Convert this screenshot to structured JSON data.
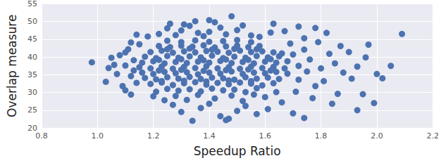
{
  "chart_data": {
    "type": "scatter",
    "xlabel": "Speedup Ratio",
    "ylabel": "Overlap measure",
    "color": "#4c72b0",
    "marker": "circle",
    "grid": true,
    "xlim": [
      0.8,
      2.2
    ],
    "ylim": [
      20,
      55
    ],
    "xticks": [
      0.8,
      {
        "value": 1,
        "label": "1.0"
      },
      1.2,
      1.4,
      1.6,
      1.8,
      {
        "value": 2,
        "label": "2.0"
      },
      2.2
    ],
    "yticks": [
      20,
      25,
      30,
      35,
      40,
      45,
      50,
      55
    ],
    "x": [
      1.21,
      1.25,
      1.29,
      1.33,
      1.37,
      1.41,
      1.45,
      1.49,
      1.53,
      1.57,
      1.19,
      1.23,
      1.27,
      1.31,
      1.35,
      1.39,
      1.43,
      1.47,
      1.51,
      1.55,
      1.59,
      1.63,
      1.17,
      1.21,
      1.25,
      1.29,
      1.33,
      1.37,
      1.41,
      1.45,
      1.49,
      1.53,
      1.57,
      1.61,
      1.65,
      1.16,
      1.2,
      1.24,
      1.28,
      1.32,
      1.36,
      1.4,
      1.44,
      1.48,
      1.52,
      1.56,
      1.6,
      1.64,
      1.68,
      1.15,
      1.19,
      1.23,
      1.27,
      1.31,
      1.35,
      1.39,
      1.43,
      1.47,
      1.51,
      1.55,
      1.59,
      1.63,
      1.67,
      1.16,
      1.2,
      1.24,
      1.28,
      1.32,
      1.36,
      1.4,
      1.44,
      1.48,
      1.52,
      1.56,
      1.6,
      1.64,
      1.68,
      1.17,
      1.21,
      1.25,
      1.29,
      1.33,
      1.37,
      1.41,
      1.45,
      1.49,
      1.53,
      1.57,
      1.61,
      1.65,
      1.19,
      1.23,
      1.27,
      1.31,
      1.35,
      1.39,
      1.43,
      1.47,
      1.51,
      1.55,
      1.59,
      1.63,
      1.22,
      1.26,
      1.3,
      1.34,
      1.38,
      1.42,
      1.46,
      1.5,
      1.54,
      1.58,
      1.25,
      1.3,
      1.35,
      1.4,
      1.45,
      1.5,
      1.55,
      1.23,
      1.31,
      1.39,
      1.47,
      1.55,
      1.22,
      1.3,
      1.38,
      1.46,
      1.54,
      1.62,
      1.22,
      1.3,
      1.38,
      1.46,
      1.54,
      1.62,
      1.25,
      1.33,
      1.41,
      1.49,
      1.57,
      1.28,
      1.3,
      1.31,
      1.33,
      1.36,
      1.38,
      1.4,
      1.42,
      1.44,
      1.46,
      1.48,
      1.5,
      1.52,
      1.55,
      1.58,
      1.62,
      1.67,
      1.72,
      1.74,
      1.78,
      1.82,
      1.22,
      1.25,
      1.18,
      1.14,
      1.12,
      1.26,
      1.35,
      1.63,
      1.4,
      1.3,
      1.34,
      1.37,
      1.4,
      1.44,
      1.47,
      1.5,
      1.53,
      1.57,
      1.61,
      1.27,
      1.24,
      1.2,
      1.32,
      1.42,
      1.52,
      1.6,
      1.66,
      1.7,
      1.74,
      1.48,
      1.36,
      1.56,
      1.28,
      1.64,
      1.12,
      1.1,
      1.46,
      0.98,
      1.03,
      1.04,
      1.05,
      1.07,
      1.08,
      1.09,
      1.1,
      1.11,
      1.12,
      1.13,
      1.14,
      1.1,
      1.06,
      1.15,
      1.13,
      1.7,
      1.72,
      1.72,
      1.74,
      1.75,
      1.76,
      1.78,
      1.79,
      1.8,
      1.81,
      1.83,
      1.85,
      1.86,
      1.87,
      1.88,
      1.9,
      1.91,
      1.93,
      1.93,
      1.95,
      1.96,
      1.97,
      1.99,
      2.0,
      2.02,
      2.05,
      2.09,
      1.84,
      1.77,
      1.69,
      1.71,
      1.66
    ],
    "values": [
      30.2,
      31.0,
      30.5,
      30.9,
      30.3,
      31.1,
      30.6,
      30.8,
      30.1,
      31.2,
      32.4,
      32.8,
      32.1,
      32.6,
      32.9,
      32.2,
      32.7,
      32.3,
      32.8,
      32.5,
      32.0,
      32.6,
      34.1,
      33.7,
      34.3,
      33.9,
      34.4,
      33.8,
      34.2,
      34.0,
      33.6,
      34.3,
      33.9,
      34.2,
      33.8,
      35.6,
      35.2,
      35.8,
      35.4,
      35.7,
      35.1,
      35.6,
      35.3,
      35.9,
      35.2,
      35.6,
      35.4,
      35.8,
      35.3,
      37.1,
      36.8,
      37.3,
      36.7,
      37.2,
      36.9,
      37.4,
      36.8,
      37.1,
      36.7,
      37.3,
      36.9,
      37.2,
      36.8,
      38.4,
      38.8,
      38.2,
      38.6,
      38.3,
      38.7,
      38.4,
      38.9,
      38.3,
      38.6,
      38.2,
      38.7,
      38.4,
      38.8,
      40.1,
      39.7,
      40.3,
      39.8,
      40.2,
      39.9,
      40.4,
      39.7,
      40.1,
      39.8,
      40.3,
      39.9,
      40.2,
      41.4,
      41.8,
      41.2,
      41.6,
      41.3,
      41.7,
      41.5,
      41.2,
      41.8,
      41.4,
      41.6,
      41.3,
      43.1,
      42.8,
      43.2,
      42.9,
      43.3,
      42.7,
      43.0,
      43.2,
      42.8,
      43.1,
      44.6,
      44.2,
      44.7,
      44.3,
      44.5,
      44.8,
      44.2,
      33.2,
      33.3,
      33.1,
      33.4,
      33.2,
      36.2,
      36.4,
      36.1,
      36.3,
      36.5,
      36.2,
      39.2,
      39.4,
      39.1,
      39.3,
      39.2,
      39.4,
      42.2,
      42.4,
      42.1,
      42.3,
      42.2,
      46.2,
      47.5,
      49.2,
      48.8,
      46.8,
      45.9,
      47.1,
      49.8,
      48.3,
      46.4,
      51.5,
      47.6,
      48.9,
      46.1,
      45.7,
      46.9,
      47.3,
      48.6,
      45.3,
      48.2,
      46.8,
      46.5,
      48.1,
      45.8,
      46.3,
      44.1,
      49.4,
      50.1,
      49.4,
      50.4,
      24.5,
      22.0,
      25.6,
      26.8,
      23.3,
      22.6,
      24.8,
      26.2,
      23.9,
      25.3,
      26.5,
      27.8,
      28.9,
      27.9,
      28.3,
      27.6,
      28.7,
      27.2,
      24.1,
      22.8,
      29.1,
      29.3,
      29.4,
      29.0,
      30.1,
      29.4,
      30.6,
      22.2,
      38.5,
      33.0,
      36.9,
      39.8,
      35.2,
      40.5,
      31.8,
      37.6,
      42.2,
      34.6,
      39.1,
      32.7,
      41.3,
      37.8,
      43.6,
      36.2,
      40.7,
      37.5,
      33.6,
      42.1,
      35.9,
      39.3,
      31.8,
      44.2,
      36.8,
      33.2,
      40.9,
      38.2,
      29.6,
      43.1,
      35.6,
      41.4,
      33.9,
      25.0,
      37.3,
      29.5,
      39.9,
      43.5,
      27.0,
      35.2,
      34.0,
      37.5,
      46.5,
      26.8,
      28.4,
      43.8,
      30.2,
      41.0
    ]
  }
}
